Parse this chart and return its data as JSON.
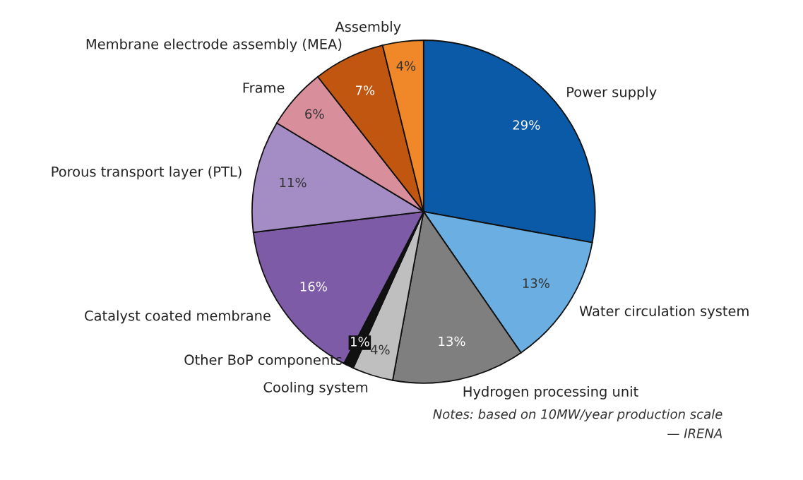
{
  "chart_data": {
    "type": "pie",
    "categories": [
      "Power supply",
      "Water circulation system",
      "Hydrogen processing unit",
      "Cooling system",
      "Other BoP components",
      "Catalyst coated membrane",
      "Porous transport layer (PTL)",
      "Frame",
      "Membrane electrode assembly (MEA)",
      "Assembly"
    ],
    "values": [
      29,
      13,
      13,
      4,
      1,
      16,
      11,
      6,
      7,
      4
    ],
    "value_labels": [
      "29%",
      "13%",
      "13%",
      "4%",
      "1%",
      "16%",
      "11%",
      "6%",
      "7%",
      "4%"
    ],
    "colors": [
      "#0b5aa8",
      "#6aaee2",
      "#7f7f7f",
      "#bfbfbf",
      "#111111",
      "#7e5ba6",
      "#a48cc4",
      "#d98e9c",
      "#c0560f",
      "#f0882a"
    ],
    "annotations": [
      "Notes: based on 10MW/year production scale",
      "— IRENA"
    ]
  }
}
